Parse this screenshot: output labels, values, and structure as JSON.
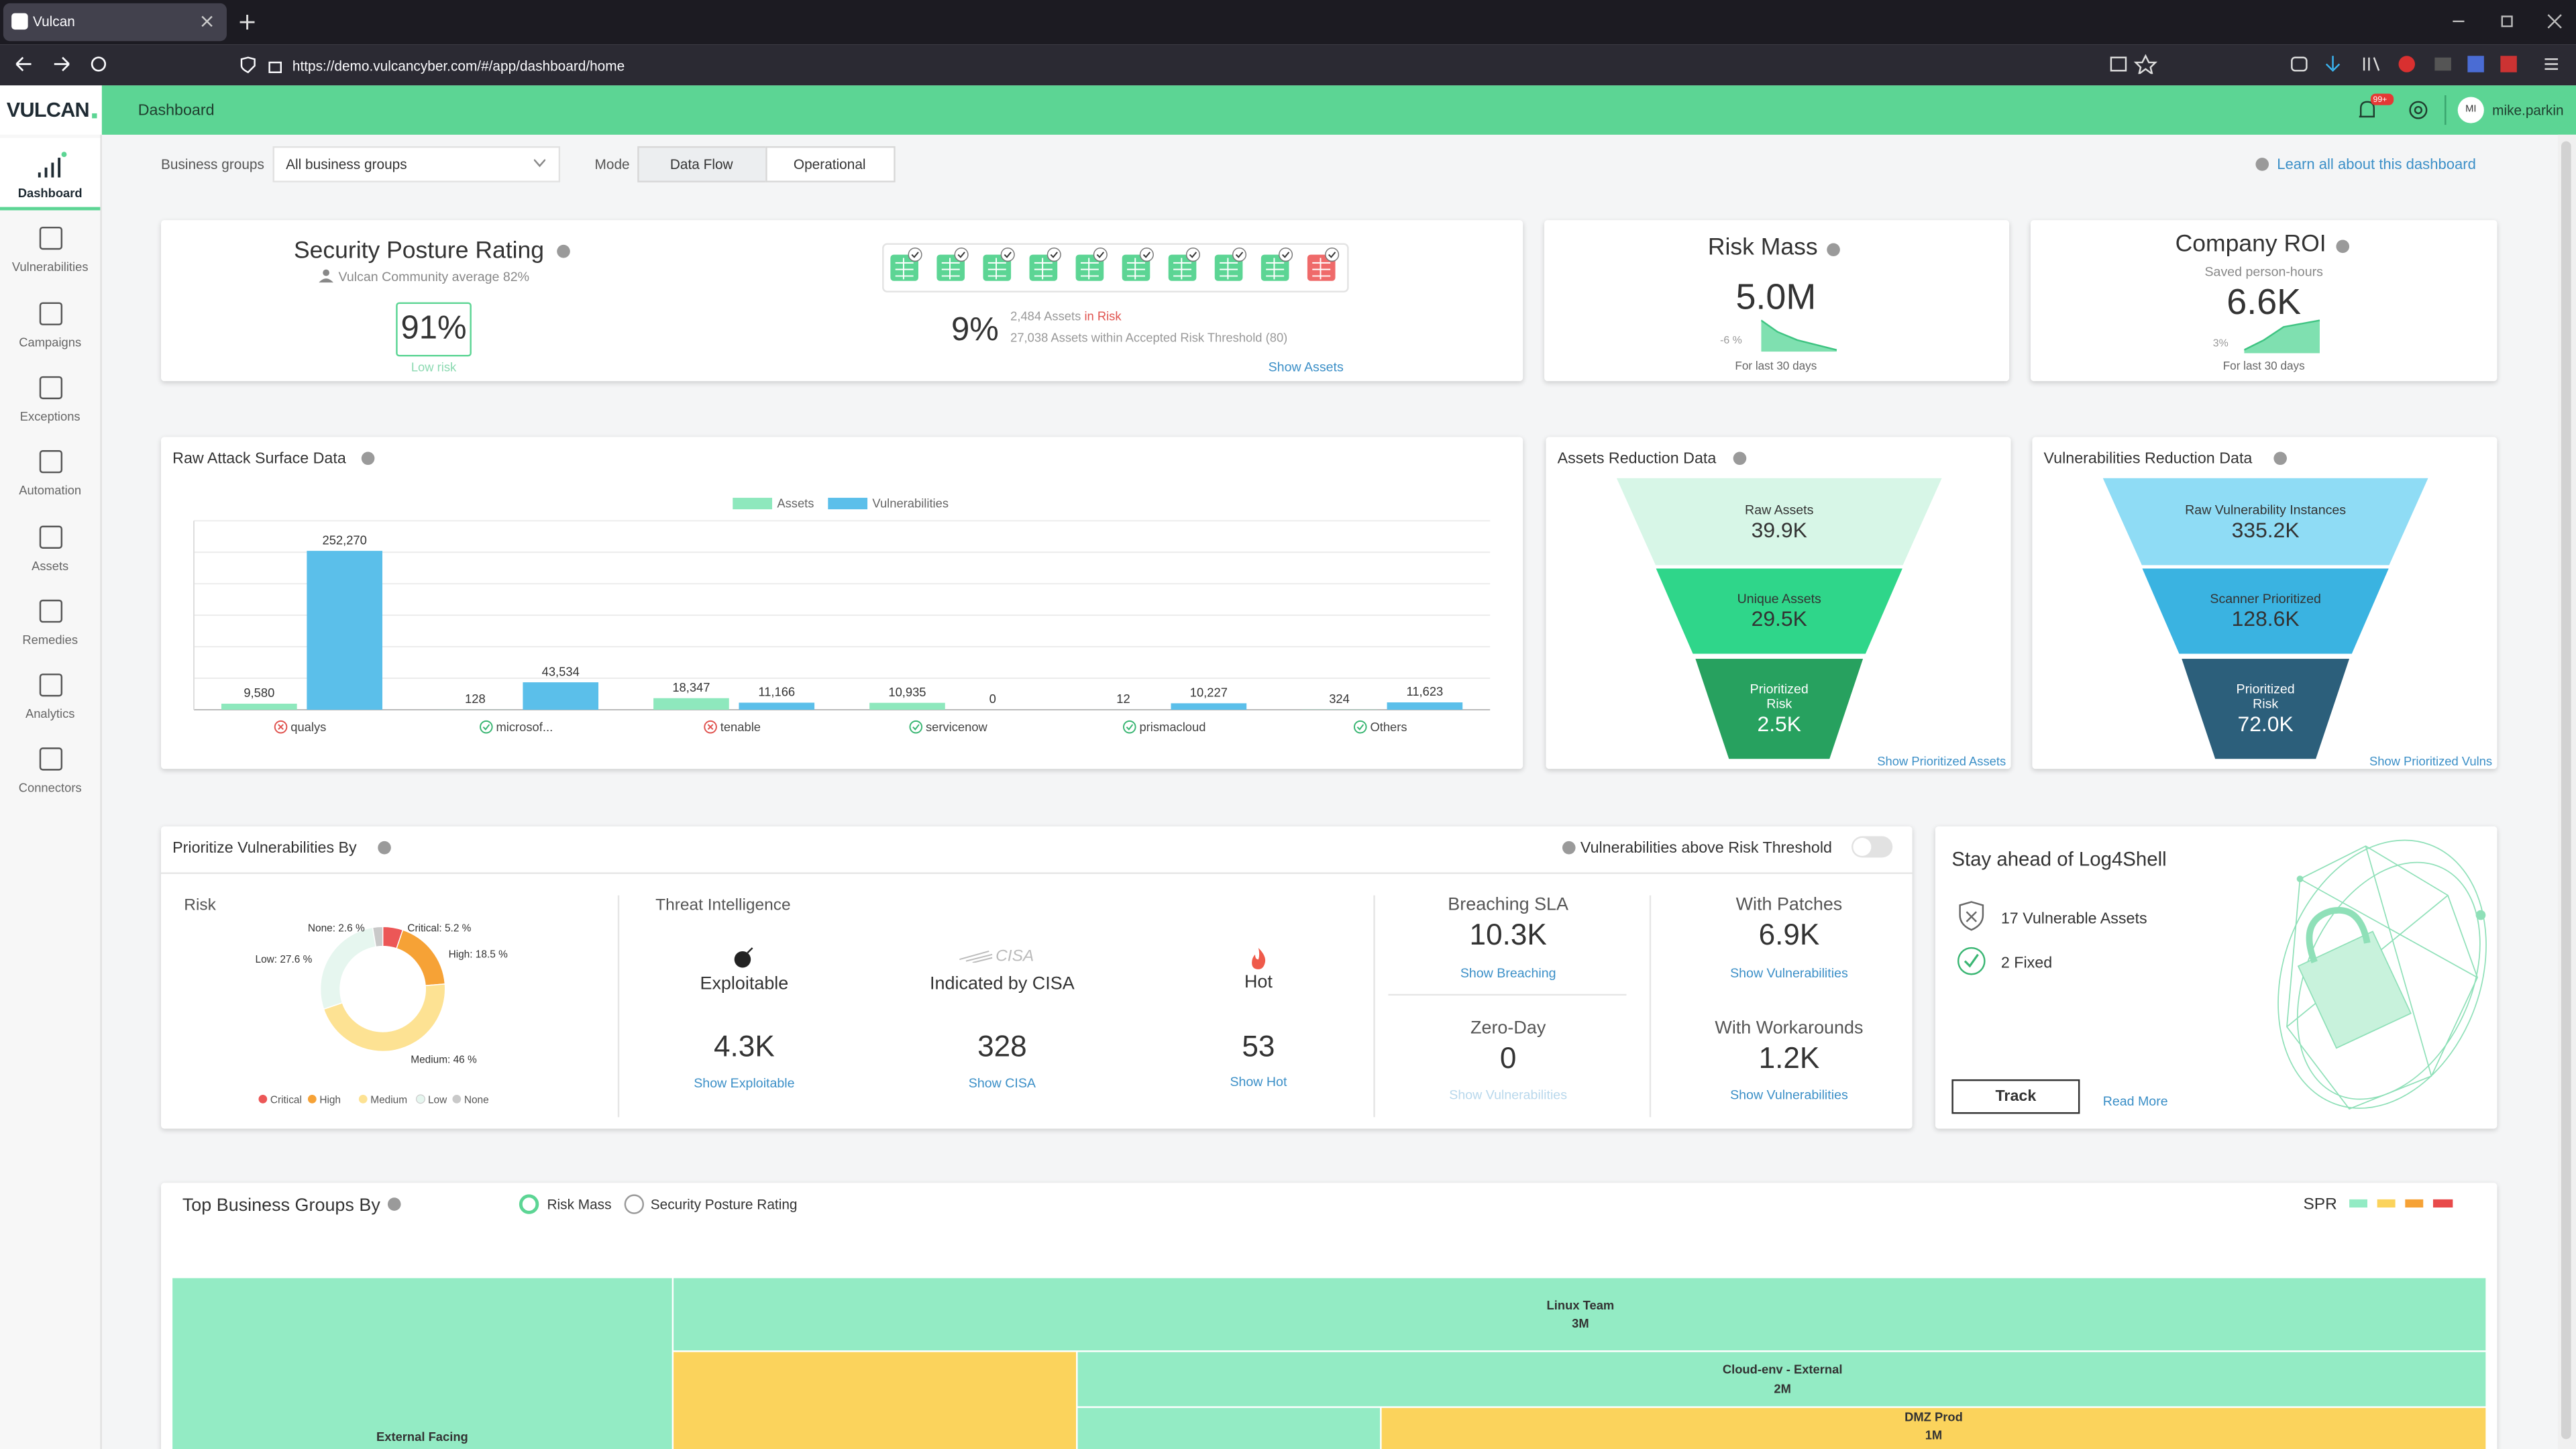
{
  "browser": {
    "tab_title": "Vulcan",
    "url": "https://demo.vulcancyber.com/#/app/dashboard/home"
  },
  "sidebar": {
    "logo": "VULCAN",
    "items": [
      "Dashboard",
      "Vulnerabilities",
      "Campaigns",
      "Exceptions",
      "Automation",
      "Assets",
      "Remedies",
      "Analytics",
      "Connectors"
    ]
  },
  "header": {
    "title": "Dashboard",
    "notification_badge": "99+",
    "user_initials": "MI",
    "user_name": "mike.parkin"
  },
  "filters": {
    "business_groups_label": "Business groups",
    "business_groups_value": "All business groups",
    "mode_label": "Mode",
    "modes": [
      "Data Flow",
      "Operational"
    ],
    "learn_link": "Learn all about this dashboard"
  },
  "spr": {
    "title": "Security Posture Rating",
    "community": "Vulcan Community average 82%",
    "score": "91%",
    "score_label": "Low risk",
    "risk_percent": "9%",
    "assets_in_risk": "2,484 Assets",
    "in_risk": "in Risk",
    "within_threshold": "27,038 Assets within Accepted Risk Threshold (80)",
    "link": "Show Assets"
  },
  "risk_mass": {
    "title": "Risk Mass",
    "value": "5.0M",
    "change": "-6 %",
    "period": "For last 30 days"
  },
  "roi": {
    "title": "Company ROI",
    "subtitle": "Saved person-hours",
    "value": "6.6K",
    "change": "3%",
    "period": "For last 30 days"
  },
  "assets_reduction": {
    "title": "Assets Reduction Data",
    "stages": [
      {
        "label": "Raw Assets",
        "value": "39.9K"
      },
      {
        "label": "Unique Assets",
        "value": "29.5K"
      },
      {
        "label": "Prioritized Risk",
        "value": "2.5K"
      }
    ],
    "link": "Show Prioritized Assets"
  },
  "vulns_reduction": {
    "title": "Vulnerabilities Reduction Data",
    "stages": [
      {
        "label": "Raw Vulnerability Instances",
        "value": "335.2K"
      },
      {
        "label": "Scanner Prioritized",
        "value": "128.6K"
      },
      {
        "label": "Prioritized Risk",
        "value": "72.0K"
      }
    ],
    "link": "Show Prioritized Vulns"
  },
  "prioritize": {
    "title": "Prioritize Vulnerabilities By",
    "toggle_label": "Vulnerabilities above Risk Threshold",
    "threat_title": "Threat Intelligence",
    "cisa_logo": "CISA",
    "threats": [
      {
        "label": "Exploitable",
        "value": "4.3K",
        "link": "Show Exploitable"
      },
      {
        "label": "Indicated by CISA",
        "value": "328",
        "link": "Show CISA"
      },
      {
        "label": "Hot",
        "value": "53",
        "link": "Show Hot"
      }
    ],
    "metrics": [
      {
        "label": "Breaching SLA",
        "value": "10.3K",
        "link": "Show Breaching"
      },
      {
        "label": "With Patches",
        "value": "6.9K",
        "link": "Show Vulnerabilities"
      },
      {
        "label": "Zero-Day",
        "value": "0",
        "link": "Show Vulnerabilities"
      },
      {
        "label": "With Workarounds",
        "value": "1.2K",
        "link": "Show Vulnerabilities"
      }
    ]
  },
  "log4shell": {
    "title": "Stay ahead of Log4Shell",
    "items": [
      "17 Vulnerable Assets",
      "2 Fixed"
    ],
    "button": "Track",
    "link": "Read More"
  },
  "top_groups": {
    "title": "Top Business Groups By",
    "options": [
      "Risk Mass",
      "Security Posture Rating"
    ],
    "legend_label": "SPR",
    "nodes": [
      {
        "label": "External Facing"
      },
      {
        "label": "Linux Team",
        "value": "3M"
      },
      {
        "label": "Cloud-env - External",
        "value": "2M"
      },
      {
        "label": "DMZ Prod",
        "value": "1M"
      }
    ]
  },
  "chart_data": [
    {
      "type": "bar",
      "title": "Raw Attack Surface Data",
      "categories": [
        "qualys",
        "microsof...",
        "tenable",
        "servicenow",
        "prismacloud",
        "Others"
      ],
      "status": [
        "error",
        "ok",
        "error",
        "ok",
        "ok",
        "ok"
      ],
      "series": [
        {
          "name": "Assets",
          "color": "#8ee8bd",
          "values": [
            9580,
            128,
            18347,
            10935,
            12,
            324
          ],
          "value_labels": [
            "9,580",
            "128",
            "18,347",
            "10,935",
            "12",
            "324"
          ]
        },
        {
          "name": "Vulnerabilities",
          "color": "#5bbfea",
          "values": [
            252270,
            43534,
            11166,
            0,
            10227,
            11623
          ],
          "value_labels": [
            "252,270",
            "43,534",
            "11,166",
            "0",
            "10,227",
            "11,623"
          ]
        }
      ],
      "ylim": [
        0,
        300000
      ],
      "yticks": [
        0,
        50000,
        100000,
        150000,
        200000,
        250000,
        300000
      ],
      "grid": true,
      "show_tick_labels": false
    },
    {
      "type": "pie",
      "title": "Risk",
      "categories": [
        "Critical",
        "High",
        "Medium",
        "Low",
        "None"
      ],
      "values": [
        5.2,
        18.5,
        46,
        27.6,
        2.6
      ],
      "value_labels": [
        "Critical: 5.2 %",
        "High: 18.5 %",
        "Medium: 46 %",
        "Low: 27.6 %",
        "None: 2.6 %"
      ],
      "colors": [
        "#ec5757",
        "#f6a236",
        "#fde293",
        "#e6f6ef",
        "#c9c9c9"
      ],
      "donut": true
    }
  ]
}
